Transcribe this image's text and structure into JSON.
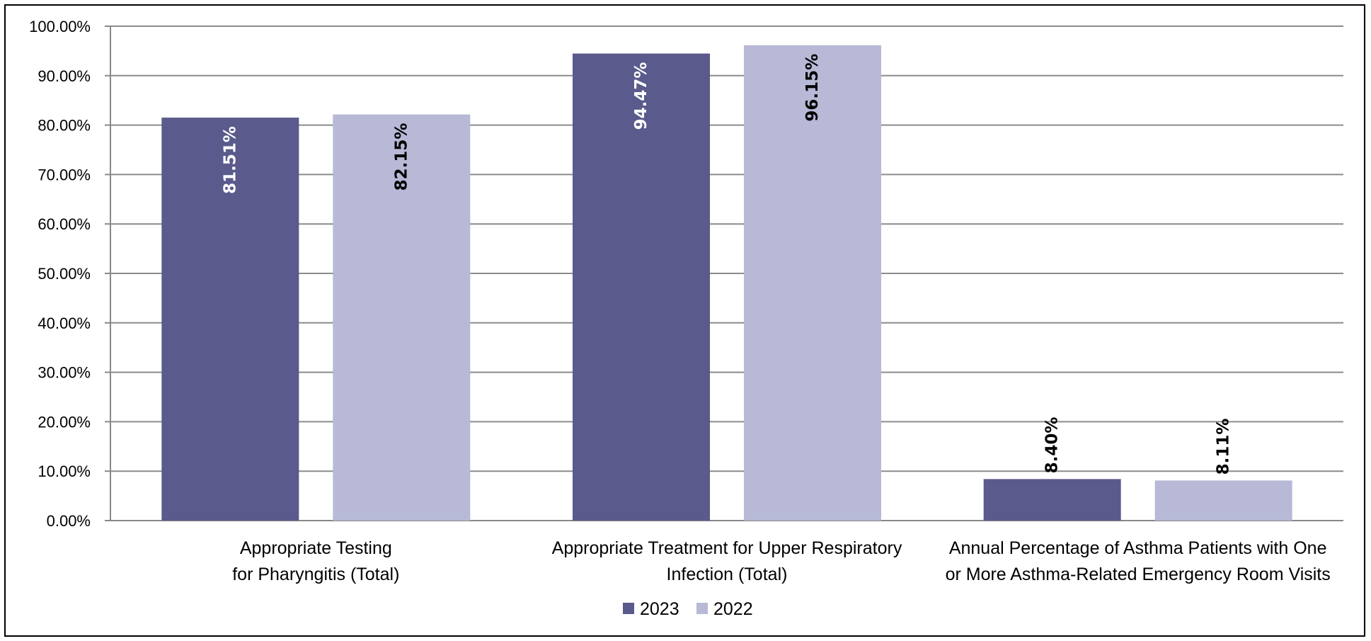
{
  "chart_data": {
    "type": "bar",
    "categories": [
      [
        "Appropriate Testing",
        "for Pharyngitis (Total)"
      ],
      [
        "Appropriate Treatment for Upper Respiratory",
        "Infection (Total)"
      ],
      [
        "Annual Percentage of Asthma Patients with One",
        "or More Asthma-Related Emergency Room Visits"
      ]
    ],
    "series": [
      {
        "name": "2023",
        "color": "#5a5a8c",
        "label_color": "#ffffff",
        "values": [
          81.51,
          94.47,
          8.4
        ],
        "labels": [
          "81.51%",
          "94.47%",
          "8.40%"
        ]
      },
      {
        "name": "2022",
        "color": "#b7b9d6",
        "label_color": "#000000",
        "values": [
          82.15,
          96.15,
          8.11
        ],
        "labels": [
          "82.15%",
          "96.15%",
          "8.11%"
        ]
      }
    ],
    "ylim": [
      0,
      100
    ],
    "yticks": [
      "0.00%",
      "10.00%",
      "20.00%",
      "30.00%",
      "40.00%",
      "50.00%",
      "60.00%",
      "70.00%",
      "80.00%",
      "90.00%",
      "100.00%"
    ],
    "grid": true,
    "legend_position": "bottom-center",
    "title": "",
    "xlabel": "",
    "ylabel": ""
  }
}
